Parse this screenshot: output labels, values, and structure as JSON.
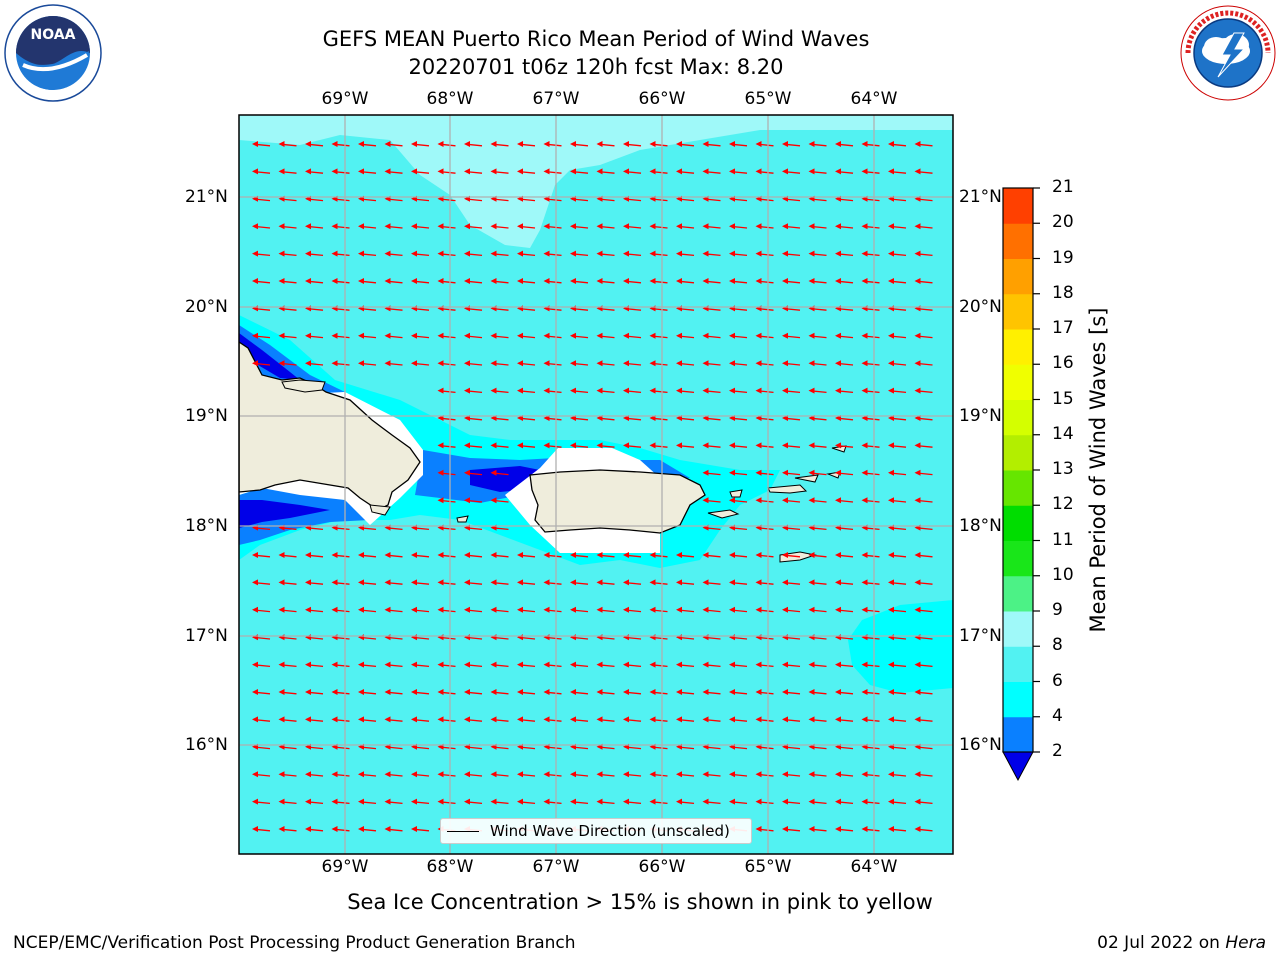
{
  "title": {
    "line1": "GEFS MEAN Puerto Rico Mean Period of Wind Waves",
    "line2": "20220701 t06z 120h fcst   Max: 8.20"
  },
  "logos": {
    "noaa": {
      "text": "NOAA",
      "ring_text": "NATIONAL OCEANIC AND ATMOSPHERIC ADMINISTRATION · U.S. DEPARTMENT OF COMMERCE"
    },
    "nws": {
      "ring_text": "NATIONAL WEATHER SERVICE"
    }
  },
  "map": {
    "lon_labels": [
      "69°W",
      "68°W",
      "67°W",
      "66°W",
      "65°W",
      "64°W"
    ],
    "lat_labels": [
      "21°N",
      "20°N",
      "19°N",
      "18°N",
      "17°N",
      "16°N"
    ],
    "wave_arrow_color": "#ff0000",
    "land_color": "#efeddc",
    "ocean_colors": {
      "period_6_8": "#52f2f2",
      "period_8_9": "#9ff9f9",
      "period_4_6": "#00ffff",
      "period_2_4": "#0a80ff",
      "below_2": "#0000e8"
    }
  },
  "legend": {
    "label": "Wind Wave Direction (unscaled)"
  },
  "colorbar": {
    "title": "Mean Period of Wind Waves [s]",
    "ticks": [
      "2",
      "4",
      "6",
      "8",
      "9",
      "10",
      "11",
      "12",
      "13",
      "14",
      "15",
      "16",
      "17",
      "18",
      "19",
      "20",
      "21"
    ],
    "colors": [
      "#0a80ff",
      "#00ffff",
      "#52f2f2",
      "#9ff9f9",
      "#4cf286",
      "#19e619",
      "#00dd00",
      "#66e600",
      "#b3ee00",
      "#d4ff00",
      "#f0ff00",
      "#fff000",
      "#ffc400",
      "#ffa000",
      "#ff7000",
      "#ff4000"
    ],
    "extend_color": "#0000e8"
  },
  "subtitle": "Sea Ice Concentration > 15% is shown in pink to yellow",
  "footer": {
    "left": "NCEP/EMC/Verification Post Processing Product Generation Branch",
    "right_prefix": "02 Jul 2022 on ",
    "right_italic": "Hera"
  }
}
